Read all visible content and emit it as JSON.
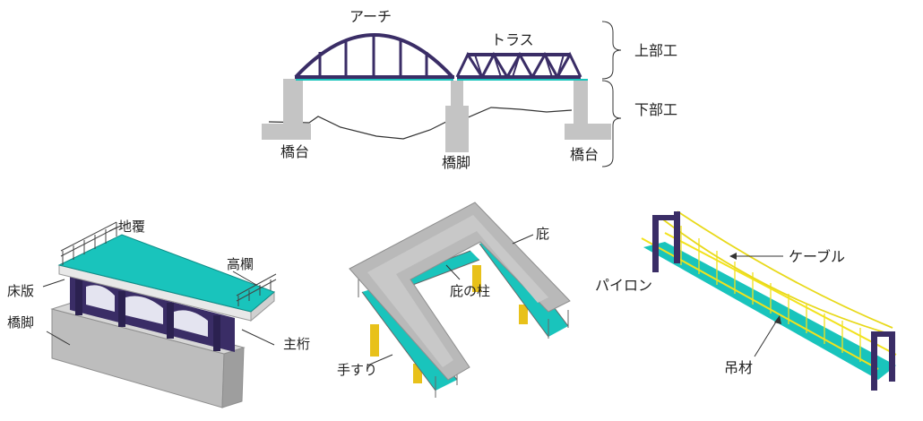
{
  "labels": {
    "arch": "アーチ",
    "truss": "トラス",
    "superstructure": "上部工",
    "substructure": "下部工",
    "abutment_left": "橋台",
    "pier": "橋脚",
    "abutment_right": "橋台",
    "curb": "地覆",
    "railing": "高欄",
    "deck_slab": "床版",
    "pier_lower": "橋脚",
    "main_girder": "主桁",
    "roof": "庇",
    "roof_column": "庇の柱",
    "handrail": "手すり",
    "cable": "ケーブル",
    "pylon": "パイロン",
    "hanger": "吊材"
  },
  "colors": {
    "steel": "#3a2d66",
    "deck": "#19c4bc",
    "concrete": "#c4c4c4",
    "yellow": "#f2e21c",
    "column": "#e8c11a"
  }
}
